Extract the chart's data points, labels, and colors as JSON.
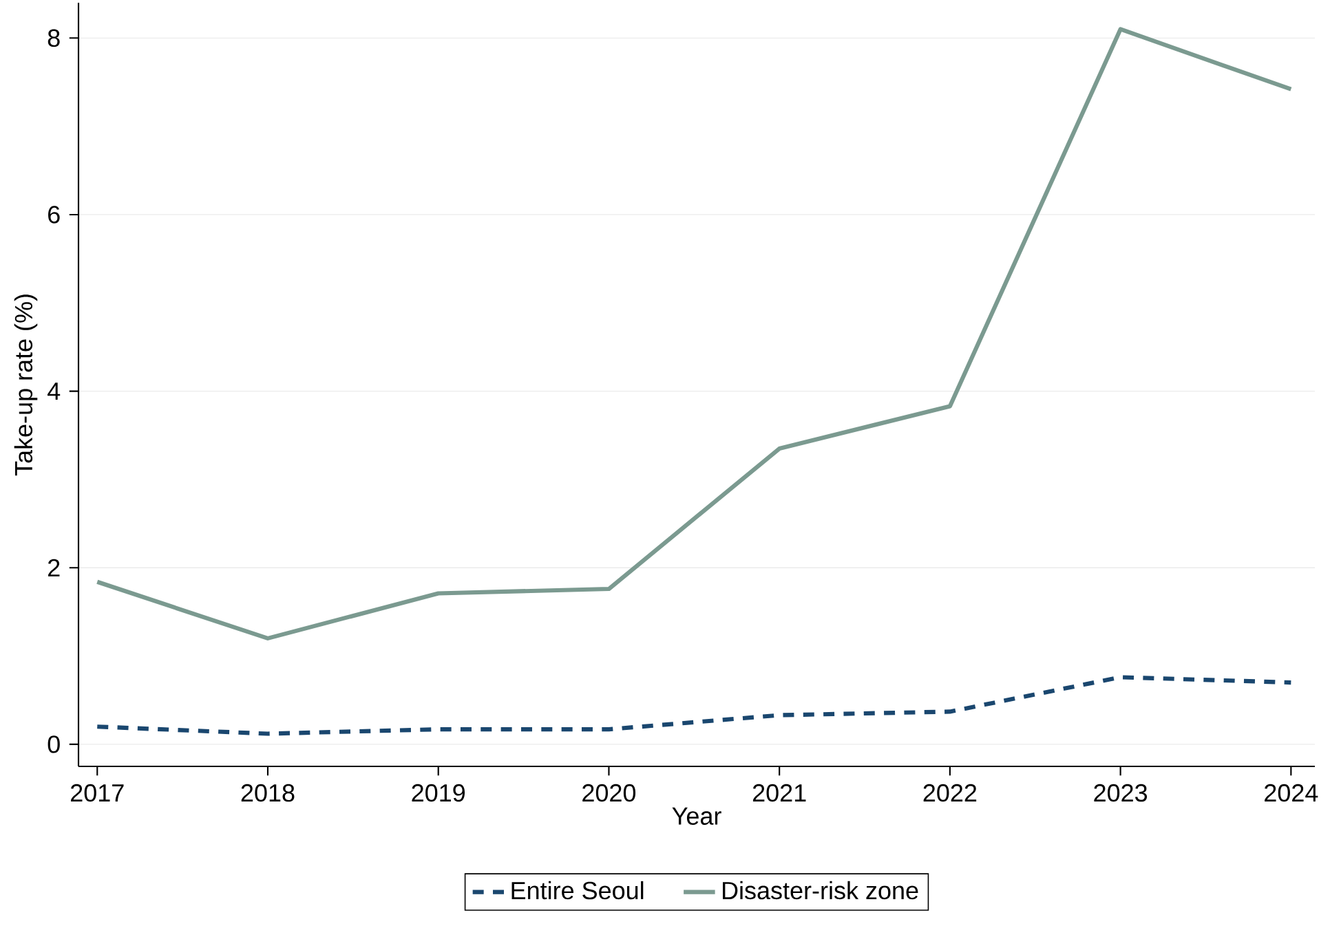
{
  "chart_data": {
    "type": "line",
    "xlabel": "Year",
    "ylabel": "Take-up rate (%)",
    "x": [
      2017,
      2018,
      2019,
      2020,
      2021,
      2022,
      2023,
      2024
    ],
    "series": [
      {
        "name": "Entire Seoul",
        "color": "#1a476f",
        "line_style": "dashed",
        "values": [
          0.2,
          0.12,
          0.17,
          0.17,
          0.33,
          0.37,
          0.76,
          0.7
        ]
      },
      {
        "name": "Disaster-risk zone",
        "color": "#7b9a90",
        "line_style": "solid",
        "values": [
          1.84,
          1.2,
          1.71,
          1.76,
          3.35,
          3.83,
          8.1,
          7.42
        ]
      }
    ],
    "xlim": [
      2016.89,
      2024.14
    ],
    "ylim": [
      -0.25,
      8.4
    ],
    "xticks": [
      2017,
      2018,
      2019,
      2020,
      2021,
      2022,
      2023,
      2024
    ],
    "yticks": [
      0,
      2,
      4,
      6,
      8
    ],
    "grid": "y",
    "legend": "bottom",
    "marker": "none"
  }
}
